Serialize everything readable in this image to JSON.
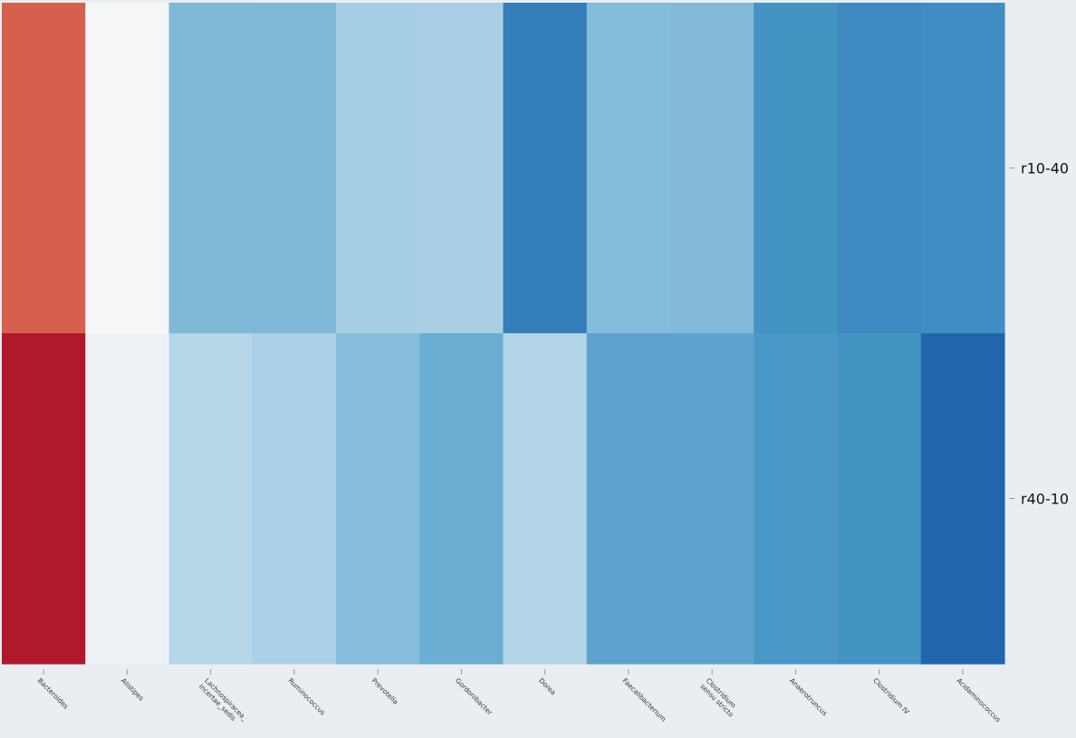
{
  "chart_data": {
    "type": "heatmap",
    "title": "",
    "xlabel": "",
    "ylabel": "",
    "colormap": "RdBu_r",
    "colorbar": false,
    "grid": false,
    "x_categories": [
      "Bacteroides",
      "Alistipes",
      "Lachnospiracea_incertae_sedis",
      "Ruminococcus",
      "Prevotella",
      "Gordonibacter",
      "Dorea",
      "Faecalibacterium",
      "Clostridium sensu stricto",
      "Anaerotruncus",
      "Clostridium IV",
      "Acidaminococcus"
    ],
    "y_categories": [
      "r10-40",
      "r40-10"
    ],
    "cell_colors": [
      [
        "#d6604d",
        "#f4f6f8",
        "#80b9d8",
        "#7fb8d7",
        "#a7cfe4",
        "#aacfe5",
        "#337eb8",
        "#84bcdb",
        "#82b9d8",
        "#4393c3",
        "#3d89c0",
        "#408dc3"
      ],
      [
        "#b2182b",
        "#edf1f6",
        "#b5d6e7",
        "#abd1e6",
        "#86bdda",
        "#6aaed3",
        "#b2d4e7",
        "#5ea3cd",
        "#5ea3cd",
        "#4b97c7",
        "#4393c3",
        "#2166ac"
      ]
    ]
  }
}
